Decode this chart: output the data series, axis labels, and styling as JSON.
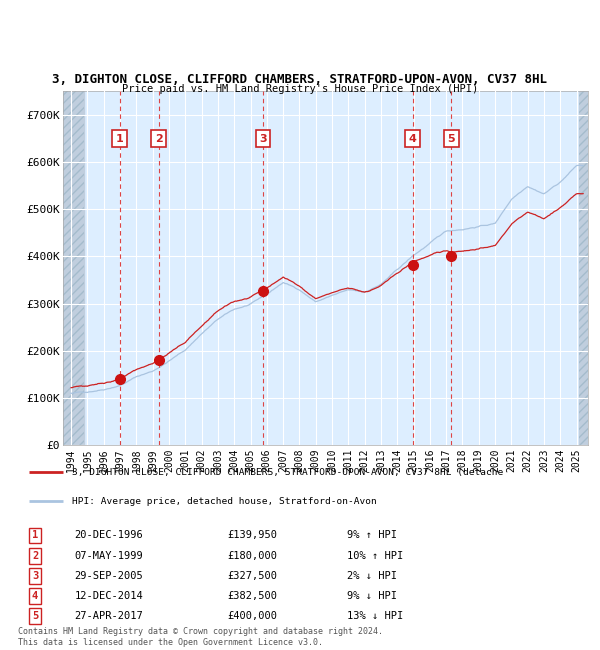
{
  "title": "3, DIGHTON CLOSE, CLIFFORD CHAMBERS, STRATFORD-UPON-AVON, CV37 8HL",
  "subtitle": "Price paid vs. HM Land Registry's House Price Index (HPI)",
  "hpi_color": "#aac4e0",
  "price_color": "#cc2222",
  "sale_marker_color": "#cc1111",
  "background_color": "#ffffff",
  "plot_bg_color": "#ddeeff",
  "grid_color": "#ffffff",
  "vline_color": "#dd4444",
  "ylim": [
    0,
    750000
  ],
  "yticks": [
    0,
    100000,
    200000,
    300000,
    400000,
    500000,
    600000,
    700000
  ],
  "ytick_labels": [
    "£0",
    "£100K",
    "£200K",
    "£300K",
    "£400K",
    "£500K",
    "£600K",
    "£700K"
  ],
  "xlim_start": 1993.5,
  "xlim_end": 2025.7,
  "hpi_base_years": [
    1994,
    1995,
    1996,
    1997,
    1998,
    1999,
    2000,
    2001,
    2002,
    2003,
    2004,
    2005,
    2006,
    2007,
    2008,
    2009,
    2010,
    2011,
    2012,
    2013,
    2014,
    2015,
    2016,
    2017,
    2018,
    2019,
    2020,
    2021,
    2022,
    2023,
    2024,
    2025
  ],
  "hpi_base_vals": [
    110000,
    113000,
    120000,
    130000,
    148000,
    160000,
    182000,
    205000,
    240000,
    270000,
    290000,
    300000,
    320000,
    345000,
    330000,
    305000,
    318000,
    328000,
    323000,
    340000,
    370000,
    400000,
    425000,
    450000,
    455000,
    462000,
    468000,
    520000,
    550000,
    535000,
    560000,
    595000
  ],
  "sales": [
    {
      "num": 1,
      "date": "20-DEC-1996",
      "year": 1996.97,
      "price": 139950,
      "pct": "9%",
      "dir": "↑"
    },
    {
      "num": 2,
      "date": "07-MAY-1999",
      "year": 1999.36,
      "price": 180000,
      "pct": "10%",
      "dir": "↑"
    },
    {
      "num": 3,
      "date": "29-SEP-2005",
      "year": 2005.75,
      "price": 327500,
      "pct": "2%",
      "dir": "↓"
    },
    {
      "num": 4,
      "date": "12-DEC-2014",
      "year": 2014.95,
      "price": 382500,
      "pct": "9%",
      "dir": "↓"
    },
    {
      "num": 5,
      "date": "27-APR-2017",
      "year": 2017.32,
      "price": 400000,
      "pct": "13%",
      "dir": "↓"
    }
  ],
  "legend_label_price": "3, DIGHTON CLOSE, CLIFFORD CHAMBERS, STRATFORD-UPON-AVON, CV37 8HL (detache",
  "legend_label_hpi": "HPI: Average price, detached house, Stratford-on-Avon",
  "footnote": "Contains HM Land Registry data © Crown copyright and database right 2024.\nThis data is licensed under the Open Government Licence v3.0.",
  "table_rows": [
    [
      "1",
      "20-DEC-1996",
      "£139,950",
      "9% ↑ HPI"
    ],
    [
      "2",
      "07-MAY-1999",
      "£180,000",
      "10% ↑ HPI"
    ],
    [
      "3",
      "29-SEP-2005",
      "£327,500",
      "2% ↓ HPI"
    ],
    [
      "4",
      "12-DEC-2014",
      "£382,500",
      "9% ↓ HPI"
    ],
    [
      "5",
      "27-APR-2017",
      "£400,000",
      "13% ↓ HPI"
    ]
  ]
}
